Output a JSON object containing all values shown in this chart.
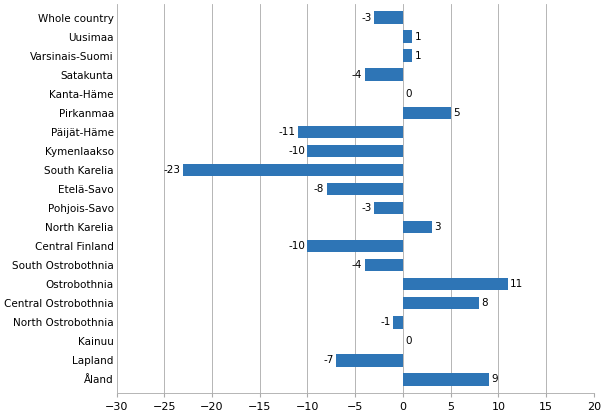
{
  "categories": [
    "Whole country",
    "Uusimaa",
    "Varsinais-Suomi",
    "Satakunta",
    "Kanta-Häme",
    "Pirkanmaa",
    "Päijät-Häme",
    "Kymenlaakso",
    "South Karelia",
    "Etelä-Savo",
    "Pohjois-Savo",
    "North Karelia",
    "Central Finland",
    "South Ostrobothnia",
    "Ostrobothnia",
    "Central Ostrobothnia",
    "North Ostrobothnia",
    "Kainuu",
    "Lapland",
    "Åland"
  ],
  "values": [
    -3,
    1,
    1,
    -4,
    0,
    5,
    -11,
    -10,
    -23,
    -8,
    -3,
    3,
    -10,
    -4,
    11,
    8,
    -1,
    0,
    -7,
    9
  ],
  "bar_color": "#2E75B6",
  "xlim": [
    -30,
    20
  ],
  "xticks": [
    -30,
    -25,
    -20,
    -15,
    -10,
    -5,
    0,
    5,
    10,
    15,
    20
  ],
  "label_fontsize": 7.5,
  "tick_fontsize": 8.0,
  "bar_height": 0.65
}
